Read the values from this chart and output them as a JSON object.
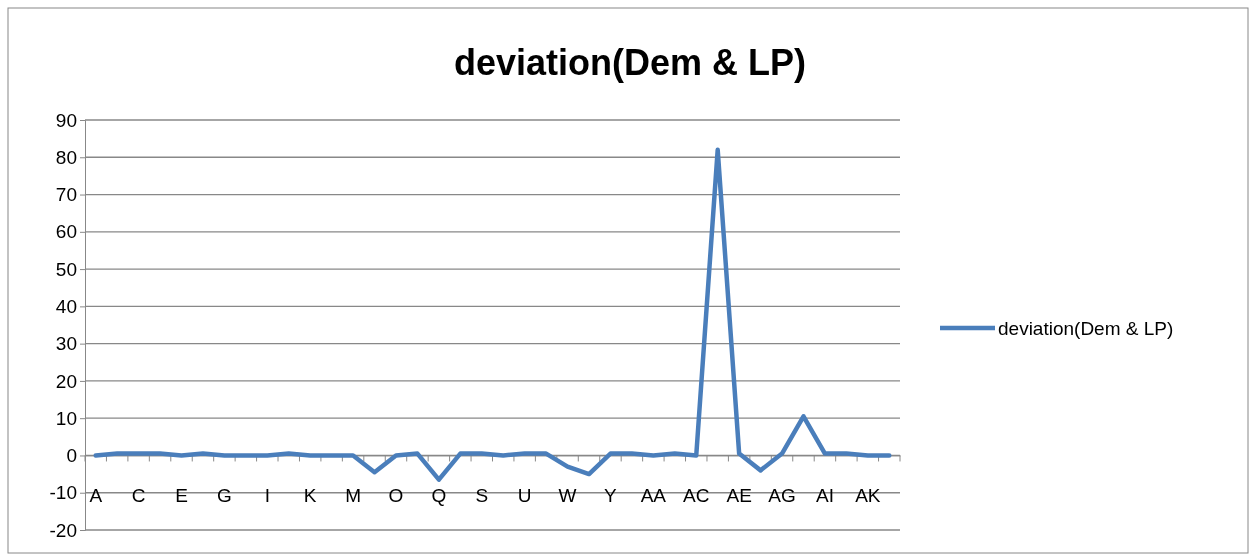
{
  "chart_data": {
    "type": "line",
    "title": "deviation(Dem & LP)",
    "categories": [
      "A",
      null,
      "C",
      null,
      "E",
      null,
      "G",
      null,
      "I",
      null,
      "K",
      null,
      "M",
      null,
      "O",
      null,
      "Q",
      null,
      "S",
      null,
      "U",
      null,
      "W",
      null,
      "Y",
      null,
      "AA",
      null,
      "AC",
      null,
      "AE",
      null,
      "AG",
      null,
      "AI",
      null,
      "AK",
      null
    ],
    "series": [
      {
        "name": "deviation(Dem & LP)",
        "color": "#4a7ebb",
        "values": [
          0,
          0.5,
          0.5,
          0.5,
          0,
          0.5,
          0,
          0,
          0,
          0.5,
          0,
          0,
          0,
          -4.5,
          0,
          0.5,
          -6.5,
          0.5,
          0.5,
          0,
          0.5,
          0.5,
          -3,
          -5,
          0.5,
          0.5,
          0,
          0.5,
          0,
          82,
          0.5,
          -4,
          0.5,
          10.5,
          0.5,
          0.5,
          0,
          0
        ]
      }
    ],
    "ylim": [
      -20,
      90
    ],
    "yticks": [
      -20,
      -10,
      0,
      10,
      20,
      30,
      40,
      50,
      60,
      70,
      80,
      90
    ],
    "grid": "y",
    "legend": "right",
    "marker": "none",
    "line_style": "solid"
  }
}
